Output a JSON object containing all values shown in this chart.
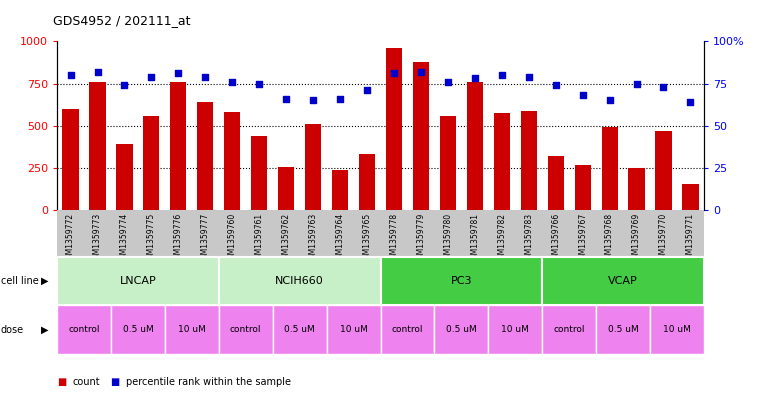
{
  "title": "GDS4952 / 202111_at",
  "samples": [
    "GSM1359772",
    "GSM1359773",
    "GSM1359774",
    "GSM1359775",
    "GSM1359776",
    "GSM1359777",
    "GSM1359760",
    "GSM1359761",
    "GSM1359762",
    "GSM1359763",
    "GSM1359764",
    "GSM1359765",
    "GSM1359778",
    "GSM1359779",
    "GSM1359780",
    "GSM1359781",
    "GSM1359782",
    "GSM1359783",
    "GSM1359766",
    "GSM1359767",
    "GSM1359768",
    "GSM1359769",
    "GSM1359770",
    "GSM1359771"
  ],
  "counts": [
    600,
    760,
    390,
    560,
    760,
    640,
    580,
    440,
    255,
    510,
    240,
    335,
    960,
    880,
    555,
    760,
    575,
    590,
    320,
    265,
    490,
    250,
    470,
    155
  ],
  "percentile_ranks": [
    80,
    82,
    74,
    79,
    81,
    79,
    76,
    75,
    66,
    65,
    66,
    71,
    81,
    82,
    76,
    78,
    80,
    79,
    74,
    68,
    65,
    75,
    73,
    64
  ],
  "bar_color": "#CC0000",
  "dot_color": "#0000CC",
  "ylim_left": [
    0,
    1000
  ],
  "ylim_right": [
    0,
    100
  ],
  "yticks_left": [
    0,
    250,
    500,
    750,
    1000
  ],
  "yticks_right": [
    0,
    25,
    50,
    75,
    100
  ],
  "grid_lines": [
    250,
    500,
    750
  ],
  "cell_groups": [
    {
      "name": "LNCAP",
      "start": 0,
      "end": 6,
      "color": "#c8f0c8"
    },
    {
      "name": "NCIH660",
      "start": 6,
      "end": 12,
      "color": "#c8f0c8"
    },
    {
      "name": "PC3",
      "start": 12,
      "end": 18,
      "color": "#44cc44"
    },
    {
      "name": "VCAP",
      "start": 18,
      "end": 24,
      "color": "#44cc44"
    }
  ],
  "dose_groups": [
    {
      "label": "control",
      "start": 0,
      "end": 2,
      "color": "#ee82ee"
    },
    {
      "label": "0.5 uM",
      "start": 2,
      "end": 4,
      "color": "#ee82ee"
    },
    {
      "label": "10 uM",
      "start": 4,
      "end": 6,
      "color": "#ee82ee"
    },
    {
      "label": "control",
      "start": 6,
      "end": 8,
      "color": "#ee82ee"
    },
    {
      "label": "0.5 uM",
      "start": 8,
      "end": 10,
      "color": "#ee82ee"
    },
    {
      "label": "10 uM",
      "start": 10,
      "end": 12,
      "color": "#ee82ee"
    },
    {
      "label": "control",
      "start": 12,
      "end": 14,
      "color": "#ee82ee"
    },
    {
      "label": "0.5 uM",
      "start": 14,
      "end": 16,
      "color": "#ee82ee"
    },
    {
      "label": "10 uM",
      "start": 16,
      "end": 18,
      "color": "#ee82ee"
    },
    {
      "label": "control",
      "start": 18,
      "end": 20,
      "color": "#ee82ee"
    },
    {
      "label": "0.5 uM",
      "start": 20,
      "end": 22,
      "color": "#ee82ee"
    },
    {
      "label": "10 uM",
      "start": 22,
      "end": 24,
      "color": "#ee82ee"
    }
  ],
  "xtick_bg": "#c8c8c8",
  "bg_color": "#ffffff"
}
